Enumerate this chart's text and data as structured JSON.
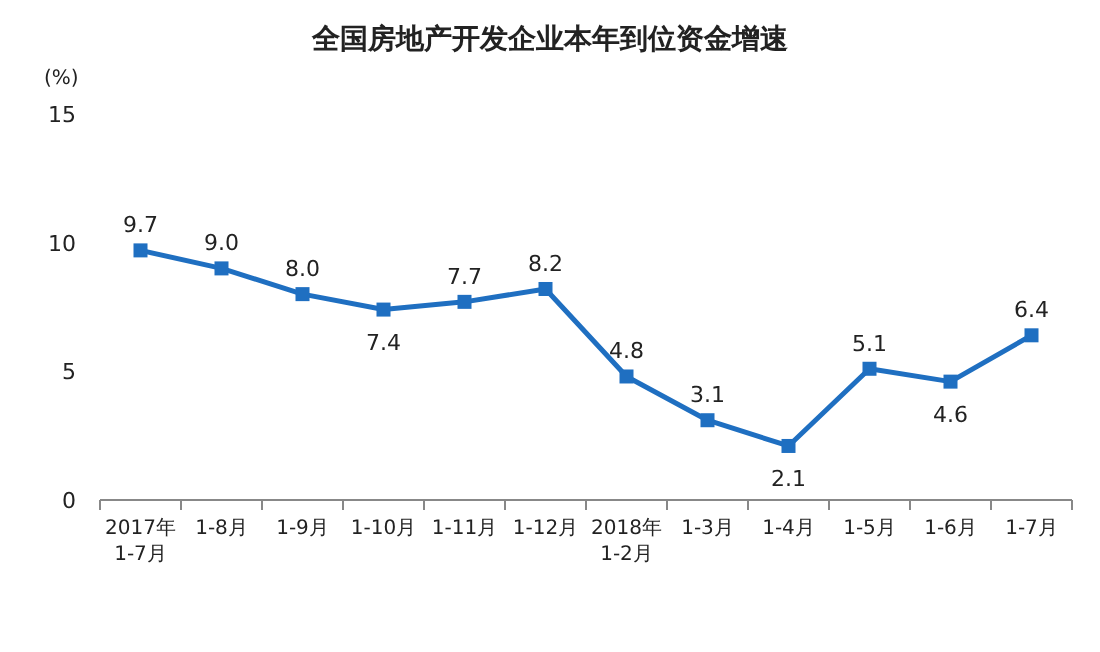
{
  "chart_data": {
    "type": "line",
    "title": "全国房地产开发企业本年到位资金增速",
    "ylabel": "(%)",
    "categories": [
      "2017年\n1-7月",
      "1-8月",
      "1-9月",
      "1-10月",
      "1-11月",
      "1-12月",
      "2018年\n1-2月",
      "1-3月",
      "1-4月",
      "1-5月",
      "1-6月",
      "1-7月"
    ],
    "values": [
      9.7,
      9.0,
      8.0,
      7.4,
      7.7,
      8.2,
      4.8,
      3.1,
      2.1,
      5.1,
      4.6,
      6.4
    ],
    "value_labels": [
      "9.7",
      "9.0",
      "8.0",
      "7.4",
      "7.7",
      "8.2",
      "4.8",
      "3.1",
      "2.1",
      "5.1",
      "4.6",
      "6.4"
    ],
    "color": "#1f6fc1",
    "marker": "square",
    "ylim": [
      0,
      15
    ],
    "yticks": [
      0,
      5,
      10,
      15
    ],
    "grid": false
  }
}
